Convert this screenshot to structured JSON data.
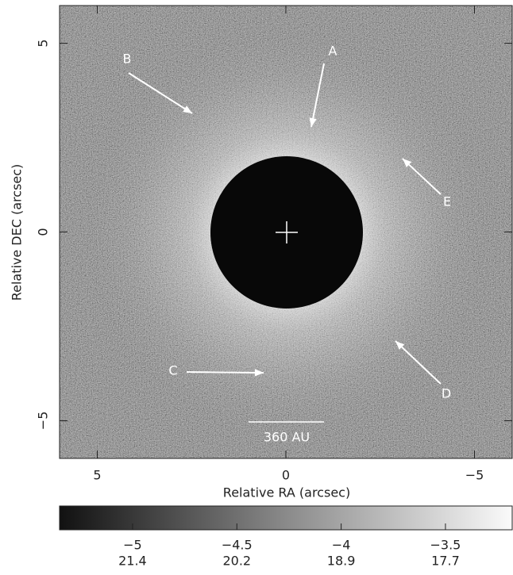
{
  "chart_data": {
    "type": "image",
    "xlabel": "Relative RA (arcsec)",
    "ylabel": "Relative DEC (arcsec)",
    "xlim": [
      6,
      -6
    ],
    "ylim": [
      -6,
      6
    ],
    "xticks": [
      5,
      0,
      {
        "value": -5,
        "label": "−5"
      }
    ],
    "yticks": [
      5,
      0,
      {
        "value": -5,
        "label": "−5"
      }
    ],
    "annotations": [
      {
        "text": "A"
      },
      {
        "text": "B"
      },
      {
        "text": "C"
      },
      {
        "text": "D"
      },
      {
        "text": "E"
      }
    ],
    "scale_bar": "360 AU",
    "colorbar": {
      "lim": [
        -5.35,
        -3.18
      ],
      "ticks": [
        {
          "value": -5,
          "label": "−5"
        },
        {
          "value": -4.5,
          "label": "−4.5"
        },
        {
          "value": -4,
          "label": "−4"
        },
        {
          "value": -3.5,
          "label": "−3.5"
        }
      ],
      "mag_labels": [
        21.4,
        20.2,
        18.9,
        17.7
      ]
    }
  }
}
